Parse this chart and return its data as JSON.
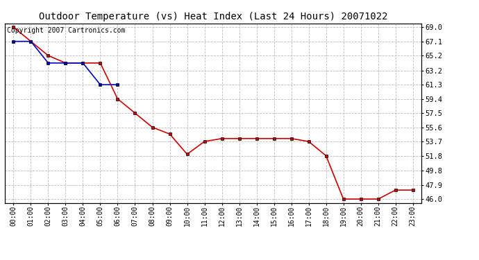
{
  "title": "Outdoor Temperature (vs) Heat Index (Last 24 Hours) 20071022",
  "copyright_text": "Copyright 2007 Cartronics.com",
  "x_labels": [
    "00:00",
    "01:00",
    "02:00",
    "03:00",
    "04:00",
    "05:00",
    "06:00",
    "07:00",
    "08:00",
    "09:00",
    "10:00",
    "11:00",
    "12:00",
    "13:00",
    "14:00",
    "15:00",
    "16:00",
    "17:00",
    "18:00",
    "19:00",
    "20:00",
    "21:00",
    "22:00",
    "23:00"
  ],
  "y_ticks": [
    46.0,
    47.9,
    49.8,
    51.8,
    53.7,
    55.6,
    57.5,
    59.4,
    61.3,
    63.2,
    65.2,
    67.1,
    69.0
  ],
  "y_min": 45.5,
  "y_max": 69.5,
  "red_line": [
    69.0,
    67.1,
    65.2,
    64.2,
    64.2,
    64.2,
    59.4,
    57.5,
    55.6,
    54.7,
    52.0,
    53.7,
    54.1,
    54.1,
    54.1,
    54.1,
    54.1,
    53.7,
    51.8,
    46.0,
    46.0,
    46.0,
    47.2,
    47.2
  ],
  "blue_line": [
    67.1,
    67.1,
    64.2,
    64.2,
    64.2,
    61.3,
    61.3,
    null,
    null,
    null,
    null,
    null,
    null,
    null,
    null,
    null,
    null,
    null,
    null,
    null,
    null,
    null,
    null,
    null
  ],
  "red_color": "#cc0000",
  "blue_color": "#0000cc",
  "marker_color": "#000000",
  "bg_color": "#ffffff",
  "grid_color": "#bbbbbb",
  "title_fontsize": 10,
  "copyright_fontsize": 7
}
